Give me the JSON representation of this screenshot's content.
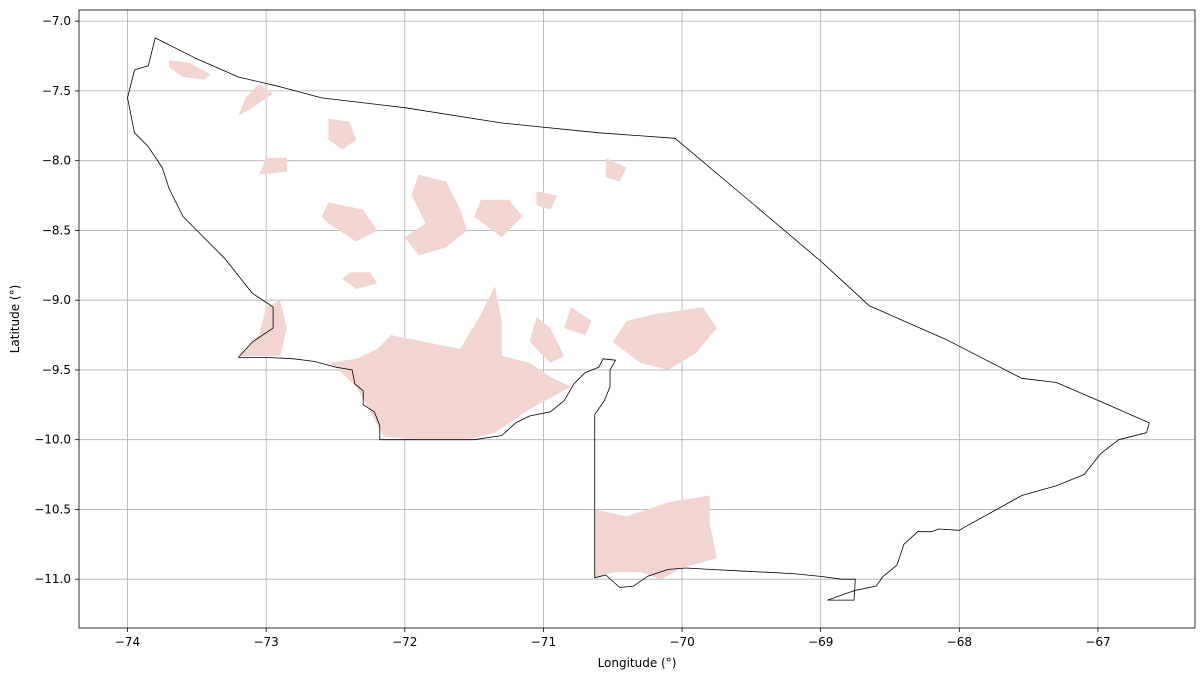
{
  "chart_data": {
    "type": "map",
    "title": "",
    "xlabel": "Longitude (°)",
    "ylabel": "Latitude (°)",
    "xlim": [
      -74.35,
      -66.3
    ],
    "ylim": [
      -11.35,
      -6.92
    ],
    "xticks": [
      -74,
      -73,
      -72,
      -71,
      -70,
      -69,
      -68,
      -67
    ],
    "yticks": [
      -7.0,
      -7.5,
      -8.0,
      -8.5,
      -9.0,
      -9.5,
      -10.0,
      -10.5,
      -11.0
    ],
    "xtick_labels": [
      "−74",
      "−73",
      "−72",
      "−71",
      "−70",
      "−69",
      "−68",
      "−67"
    ],
    "ytick_labels": [
      "−7.0",
      "−7.5",
      "−8.0",
      "−8.5",
      "−9.0",
      "−9.5",
      "−10.0",
      "−10.5",
      "−11.0"
    ],
    "grid": true,
    "colors": {
      "shaded_area": "#f2d4d1",
      "boundary": "#000000",
      "grid": "#b0b0b0"
    },
    "boundary": [
      [
        -73.8,
        -7.12
      ],
      [
        -73.5,
        -7.27
      ],
      [
        -73.2,
        -7.4
      ],
      [
        -72.9,
        -7.47
      ],
      [
        -72.6,
        -7.55
      ],
      [
        -72.0,
        -7.62
      ],
      [
        -71.3,
        -7.73
      ],
      [
        -70.6,
        -7.8
      ],
      [
        -70.05,
        -7.84
      ],
      [
        -69.5,
        -8.3
      ],
      [
        -69.0,
        -8.72
      ],
      [
        -68.65,
        -9.04
      ],
      [
        -68.1,
        -9.28
      ],
      [
        -67.55,
        -9.56
      ],
      [
        -67.3,
        -9.59
      ],
      [
        -66.95,
        -9.74
      ],
      [
        -66.63,
        -9.88
      ],
      [
        -66.65,
        -9.95
      ],
      [
        -66.85,
        -10.0
      ],
      [
        -66.98,
        -10.1
      ],
      [
        -67.1,
        -10.25
      ],
      [
        -67.3,
        -10.33
      ],
      [
        -67.55,
        -10.4
      ],
      [
        -67.73,
        -10.5
      ],
      [
        -67.95,
        -10.62
      ],
      [
        -68.0,
        -10.65
      ],
      [
        -68.15,
        -10.64
      ],
      [
        -68.2,
        -10.66
      ],
      [
        -68.3,
        -10.66
      ],
      [
        -68.4,
        -10.75
      ],
      [
        -68.45,
        -10.9
      ],
      [
        -68.55,
        -10.98
      ],
      [
        -68.6,
        -11.05
      ],
      [
        -68.75,
        -11.08
      ],
      [
        -68.95,
        -11.15
      ],
      [
        -68.76,
        -11.15
      ],
      [
        -68.75,
        -11.0
      ],
      [
        -68.85,
        -11.0
      ],
      [
        -69.0,
        -10.98
      ],
      [
        -69.2,
        -10.96
      ],
      [
        -69.4,
        -10.95
      ],
      [
        -69.6,
        -10.94
      ],
      [
        -69.8,
        -10.93
      ],
      [
        -69.97,
        -10.92
      ],
      [
        -70.1,
        -10.93
      ],
      [
        -70.25,
        -10.98
      ],
      [
        -70.35,
        -11.05
      ],
      [
        -70.45,
        -11.06
      ],
      [
        -70.55,
        -10.97
      ],
      [
        -70.63,
        -10.99
      ],
      [
        -70.63,
        -10.5
      ],
      [
        -70.63,
        -9.82
      ],
      [
        -70.56,
        -9.72
      ],
      [
        -70.52,
        -9.62
      ],
      [
        -70.52,
        -9.5
      ],
      [
        -70.48,
        -9.43
      ],
      [
        -70.57,
        -9.42
      ],
      [
        -70.6,
        -9.48
      ],
      [
        -70.7,
        -9.52
      ],
      [
        -70.78,
        -9.6
      ],
      [
        -70.85,
        -9.72
      ],
      [
        -70.95,
        -9.8
      ],
      [
        -71.1,
        -9.83
      ],
      [
        -71.2,
        -9.88
      ],
      [
        -71.3,
        -9.97
      ],
      [
        -71.5,
        -10.0
      ],
      [
        -71.8,
        -10.0
      ],
      [
        -72.18,
        -10.0
      ],
      [
        -72.18,
        -9.9
      ],
      [
        -72.22,
        -9.8
      ],
      [
        -72.3,
        -9.75
      ],
      [
        -72.3,
        -9.65
      ],
      [
        -72.36,
        -9.6
      ],
      [
        -72.38,
        -9.5
      ],
      [
        -72.5,
        -9.48
      ],
      [
        -72.65,
        -9.44
      ],
      [
        -72.8,
        -9.42
      ],
      [
        -73.0,
        -9.41
      ],
      [
        -73.2,
        -9.41
      ],
      [
        -73.1,
        -9.3
      ],
      [
        -72.95,
        -9.2
      ],
      [
        -72.95,
        -9.05
      ],
      [
        -73.1,
        -8.95
      ],
      [
        -73.3,
        -8.7
      ],
      [
        -73.5,
        -8.5
      ],
      [
        -73.6,
        -8.4
      ],
      [
        -73.7,
        -8.2
      ],
      [
        -73.75,
        -8.05
      ],
      [
        -73.85,
        -7.9
      ],
      [
        -73.95,
        -7.8
      ],
      [
        -74.0,
        -7.55
      ],
      [
        -73.95,
        -7.35
      ],
      [
        -73.85,
        -7.32
      ],
      [
        -73.8,
        -7.12
      ]
    ],
    "shaded_areas": [
      [
        [
          -73.7,
          -7.28
        ],
        [
          -73.55,
          -7.3
        ],
        [
          -73.4,
          -7.38
        ],
        [
          -73.45,
          -7.42
        ],
        [
          -73.6,
          -7.4
        ],
        [
          -73.7,
          -7.33
        ]
      ],
      [
        [
          -73.05,
          -7.45
        ],
        [
          -72.95,
          -7.52
        ],
        [
          -73.1,
          -7.62
        ],
        [
          -73.2,
          -7.68
        ],
        [
          -73.15,
          -7.55
        ]
      ],
      [
        [
          -72.55,
          -7.7
        ],
        [
          -72.4,
          -7.72
        ],
        [
          -72.35,
          -7.85
        ],
        [
          -72.45,
          -7.92
        ],
        [
          -72.55,
          -7.85
        ]
      ],
      [
        [
          -73.0,
          -7.98
        ],
        [
          -72.85,
          -7.98
        ],
        [
          -72.85,
          -8.08
        ],
        [
          -73.05,
          -8.1
        ]
      ],
      [
        [
          -72.55,
          -8.3
        ],
        [
          -72.3,
          -8.35
        ],
        [
          -72.2,
          -8.5
        ],
        [
          -72.35,
          -8.58
        ],
        [
          -72.55,
          -8.45
        ],
        [
          -72.6,
          -8.4
        ]
      ],
      [
        [
          -71.9,
          -8.1
        ],
        [
          -71.7,
          -8.15
        ],
        [
          -71.6,
          -8.35
        ],
        [
          -71.55,
          -8.5
        ],
        [
          -71.7,
          -8.62
        ],
        [
          -71.9,
          -8.68
        ],
        [
          -72.0,
          -8.55
        ],
        [
          -71.85,
          -8.45
        ],
        [
          -71.95,
          -8.25
        ]
      ],
      [
        [
          -71.45,
          -8.28
        ],
        [
          -71.25,
          -8.28
        ],
        [
          -71.15,
          -8.4
        ],
        [
          -71.3,
          -8.55
        ],
        [
          -71.5,
          -8.4
        ]
      ],
      [
        [
          -72.4,
          -8.8
        ],
        [
          -72.25,
          -8.8
        ],
        [
          -72.2,
          -8.88
        ],
        [
          -72.35,
          -8.92
        ],
        [
          -72.45,
          -8.85
        ]
      ],
      [
        [
          -71.05,
          -8.22
        ],
        [
          -70.9,
          -8.25
        ],
        [
          -70.95,
          -8.35
        ],
        [
          -71.05,
          -8.32
        ]
      ],
      [
        [
          -70.55,
          -7.98
        ],
        [
          -70.4,
          -8.05
        ],
        [
          -70.45,
          -8.15
        ],
        [
          -70.55,
          -8.12
        ]
      ],
      [
        [
          -73.2,
          -9.4
        ],
        [
          -72.9,
          -9.4
        ],
        [
          -72.85,
          -9.2
        ],
        [
          -72.9,
          -9.0
        ],
        [
          -73.0,
          -9.05
        ],
        [
          -73.05,
          -9.25
        ]
      ],
      [
        [
          -72.55,
          -9.45
        ],
        [
          -72.35,
          -9.42
        ],
        [
          -72.2,
          -9.35
        ],
        [
          -72.1,
          -9.25
        ],
        [
          -71.95,
          -9.28
        ],
        [
          -71.6,
          -9.35
        ],
        [
          -71.45,
          -9.1
        ],
        [
          -71.35,
          -8.9
        ],
        [
          -71.3,
          -9.15
        ],
        [
          -71.3,
          -9.4
        ],
        [
          -71.1,
          -9.45
        ],
        [
          -70.95,
          -9.55
        ],
        [
          -70.8,
          -9.62
        ],
        [
          -71.1,
          -9.78
        ],
        [
          -71.35,
          -9.95
        ],
        [
          -71.55,
          -10.0
        ],
        [
          -71.9,
          -10.0
        ],
        [
          -72.15,
          -9.98
        ],
        [
          -72.25,
          -9.8
        ],
        [
          -72.35,
          -9.62
        ],
        [
          -72.5,
          -9.48
        ]
      ],
      [
        [
          -71.05,
          -9.12
        ],
        [
          -70.95,
          -9.2
        ],
        [
          -70.85,
          -9.4
        ],
        [
          -70.95,
          -9.45
        ],
        [
          -71.1,
          -9.3
        ]
      ],
      [
        [
          -70.8,
          -9.05
        ],
        [
          -70.65,
          -9.15
        ],
        [
          -70.7,
          -9.25
        ],
        [
          -70.85,
          -9.2
        ]
      ],
      [
        [
          -70.4,
          -9.15
        ],
        [
          -70.2,
          -9.1
        ],
        [
          -69.85,
          -9.05
        ],
        [
          -69.75,
          -9.2
        ],
        [
          -69.9,
          -9.38
        ],
        [
          -70.1,
          -9.5
        ],
        [
          -70.3,
          -9.45
        ],
        [
          -70.5,
          -9.3
        ]
      ],
      [
        [
          -70.63,
          -10.5
        ],
        [
          -70.4,
          -10.55
        ],
        [
          -70.1,
          -10.45
        ],
        [
          -69.8,
          -10.4
        ],
        [
          -69.8,
          -10.6
        ],
        [
          -69.75,
          -10.85
        ],
        [
          -70.0,
          -10.92
        ],
        [
          -70.15,
          -11.0
        ],
        [
          -70.3,
          -10.95
        ],
        [
          -70.5,
          -10.95
        ],
        [
          -70.63,
          -10.99
        ]
      ]
    ]
  }
}
